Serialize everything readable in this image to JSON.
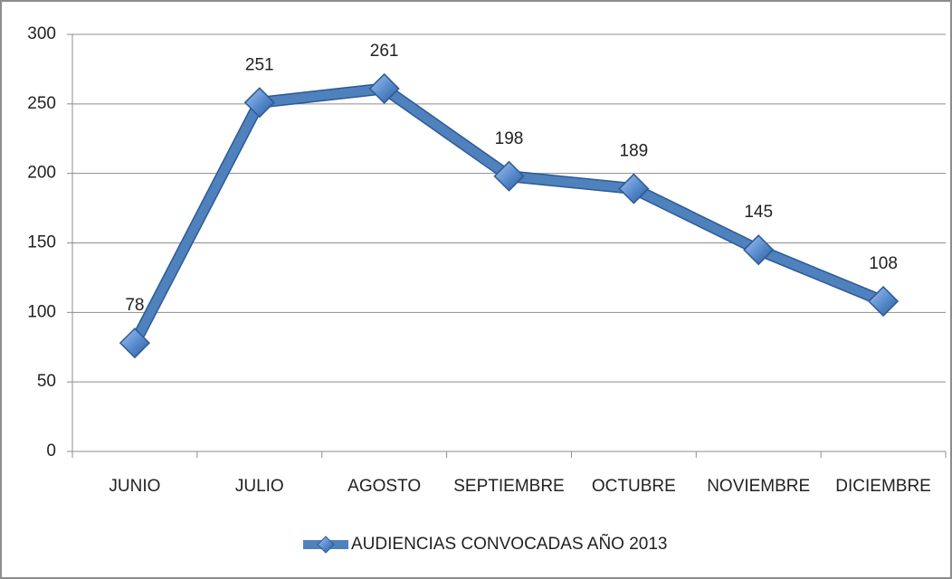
{
  "chart_data": {
    "type": "line",
    "categories": [
      "JUNIO",
      "JULIO",
      "AGOSTO",
      "SEPTIEMBRE",
      "OCTUBRE",
      "NOVIEMBRE",
      "DICIEMBRE"
    ],
    "series": [
      {
        "name": "AUDIENCIAS CONVOCADAS AÑO 2013",
        "color": "#4f81bd",
        "values": [
          78,
          251,
          261,
          198,
          189,
          145,
          108
        ]
      }
    ],
    "ylim": [
      0,
      300
    ],
    "yticks": [
      0,
      50,
      100,
      150,
      200,
      250,
      300
    ],
    "grid": true,
    "legend": "bottom"
  }
}
